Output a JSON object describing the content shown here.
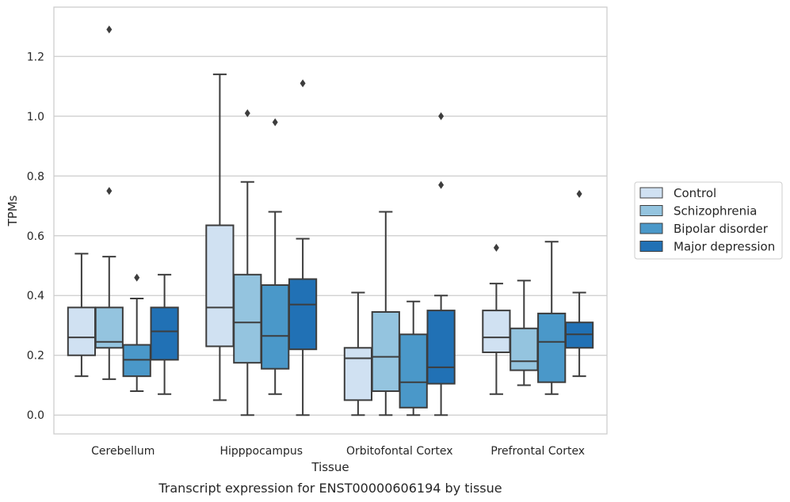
{
  "chart_data": {
    "type": "box",
    "caption": "Transcript expression for ENST00000606194 by tissue",
    "xlabel": "Tissue",
    "ylabel": "TPMs",
    "ylim": [
      -0.063,
      1.365
    ],
    "yticks": [
      0.0,
      0.2,
      0.4,
      0.6,
      0.8,
      1.0,
      1.2
    ],
    "ytick_labels": [
      "0.0",
      "0.2",
      "0.4",
      "0.6",
      "0.8",
      "1.0",
      "1.2"
    ],
    "grid": true,
    "legend_position": "right",
    "categories": [
      "Cerebellum",
      "Hipppocampus",
      "Orbitofontal Cortex",
      "Prefrontal Cortex"
    ],
    "series": [
      {
        "name": "Control",
        "color": "#d0e1f2",
        "boxes": [
          {
            "q1": 0.2,
            "median": 0.26,
            "q3": 0.36,
            "whisker_low": 0.13,
            "whisker_high": 0.54,
            "outliers": []
          },
          {
            "q1": 0.23,
            "median": 0.36,
            "q3": 0.635,
            "whisker_low": 0.05,
            "whisker_high": 1.14,
            "outliers": []
          },
          {
            "q1": 0.05,
            "median": 0.19,
            "q3": 0.225,
            "whisker_low": 0.0,
            "whisker_high": 0.41,
            "outliers": []
          },
          {
            "q1": 0.21,
            "median": 0.26,
            "q3": 0.35,
            "whisker_low": 0.07,
            "whisker_high": 0.44,
            "outliers": [
              0.56
            ]
          }
        ]
      },
      {
        "name": "Schizophrenia",
        "color": "#94c4df",
        "boxes": [
          {
            "q1": 0.225,
            "median": 0.245,
            "q3": 0.36,
            "whisker_low": 0.12,
            "whisker_high": 0.53,
            "outliers": [
              0.75,
              1.29
            ]
          },
          {
            "q1": 0.175,
            "median": 0.31,
            "q3": 0.47,
            "whisker_low": 0.0,
            "whisker_high": 0.78,
            "outliers": [
              1.01
            ]
          },
          {
            "q1": 0.08,
            "median": 0.195,
            "q3": 0.345,
            "whisker_low": 0.0,
            "whisker_high": 0.68,
            "outliers": []
          },
          {
            "q1": 0.15,
            "median": 0.18,
            "q3": 0.29,
            "whisker_low": 0.1,
            "whisker_high": 0.45,
            "outliers": []
          }
        ]
      },
      {
        "name": "Bipolar disorder",
        "color": "#4a98c9",
        "boxes": [
          {
            "q1": 0.13,
            "median": 0.185,
            "q3": 0.235,
            "whisker_low": 0.08,
            "whisker_high": 0.39,
            "outliers": [
              0.46
            ]
          },
          {
            "q1": 0.155,
            "median": 0.265,
            "q3": 0.435,
            "whisker_low": 0.07,
            "whisker_high": 0.68,
            "outliers": [
              0.98
            ]
          },
          {
            "q1": 0.025,
            "median": 0.11,
            "q3": 0.27,
            "whisker_low": 0.0,
            "whisker_high": 0.38,
            "outliers": []
          },
          {
            "q1": 0.11,
            "median": 0.245,
            "q3": 0.34,
            "whisker_low": 0.07,
            "whisker_high": 0.58,
            "outliers": []
          }
        ]
      },
      {
        "name": "Major depression",
        "color": "#2171b5",
        "boxes": [
          {
            "q1": 0.185,
            "median": 0.28,
            "q3": 0.36,
            "whisker_low": 0.07,
            "whisker_high": 0.47,
            "outliers": []
          },
          {
            "q1": 0.22,
            "median": 0.37,
            "q3": 0.455,
            "whisker_low": 0.0,
            "whisker_high": 0.59,
            "outliers": [
              1.11
            ]
          },
          {
            "q1": 0.105,
            "median": 0.16,
            "q3": 0.35,
            "whisker_low": 0.0,
            "whisker_high": 0.4,
            "outliers": [
              0.77,
              1.0
            ]
          },
          {
            "q1": 0.225,
            "median": 0.27,
            "q3": 0.31,
            "whisker_low": 0.13,
            "whisker_high": 0.41,
            "outliers": [
              0.74
            ]
          }
        ]
      }
    ]
  }
}
